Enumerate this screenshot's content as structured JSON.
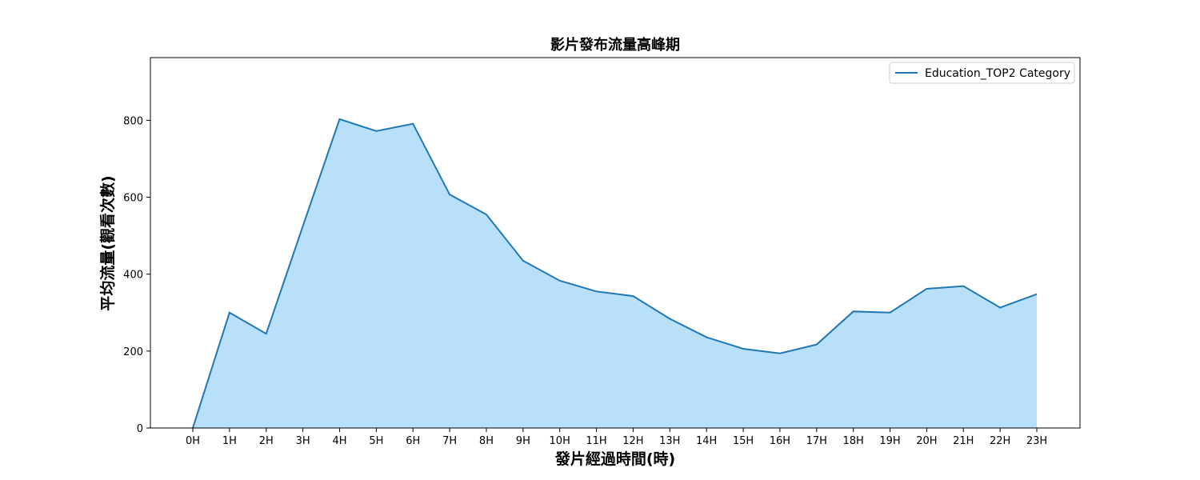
{
  "chart_data": {
    "type": "area",
    "title": "影片發布流量高峰期",
    "xlabel": "發片經過時間(時)",
    "ylabel": "平均流量(觀看次數)",
    "categories": [
      "0H",
      "1H",
      "2H",
      "3H",
      "4H",
      "5H",
      "6H",
      "7H",
      "8H",
      "9H",
      "10H",
      "11H",
      "12H",
      "13H",
      "14H",
      "15H",
      "16H",
      "17H",
      "18H",
      "19H",
      "20H",
      "21H",
      "22H",
      "23H"
    ],
    "series": [
      {
        "name": "Education_TOP2 Category",
        "values": [
          0,
          300,
          245,
          525,
          803,
          772,
          791,
          607,
          555,
          435,
          383,
          355,
          343,
          284,
          236,
          206,
          194,
          217,
          303,
          300,
          362,
          369,
          313,
          348
        ]
      }
    ],
    "yticks": [
      0,
      200,
      400,
      600,
      800
    ],
    "ylim": [
      0,
      963
    ],
    "grid": false,
    "legend_position": "top-right",
    "colors": {
      "line": "#1f77b4",
      "fill": "#b8e0fa",
      "axis": "#000000"
    }
  }
}
